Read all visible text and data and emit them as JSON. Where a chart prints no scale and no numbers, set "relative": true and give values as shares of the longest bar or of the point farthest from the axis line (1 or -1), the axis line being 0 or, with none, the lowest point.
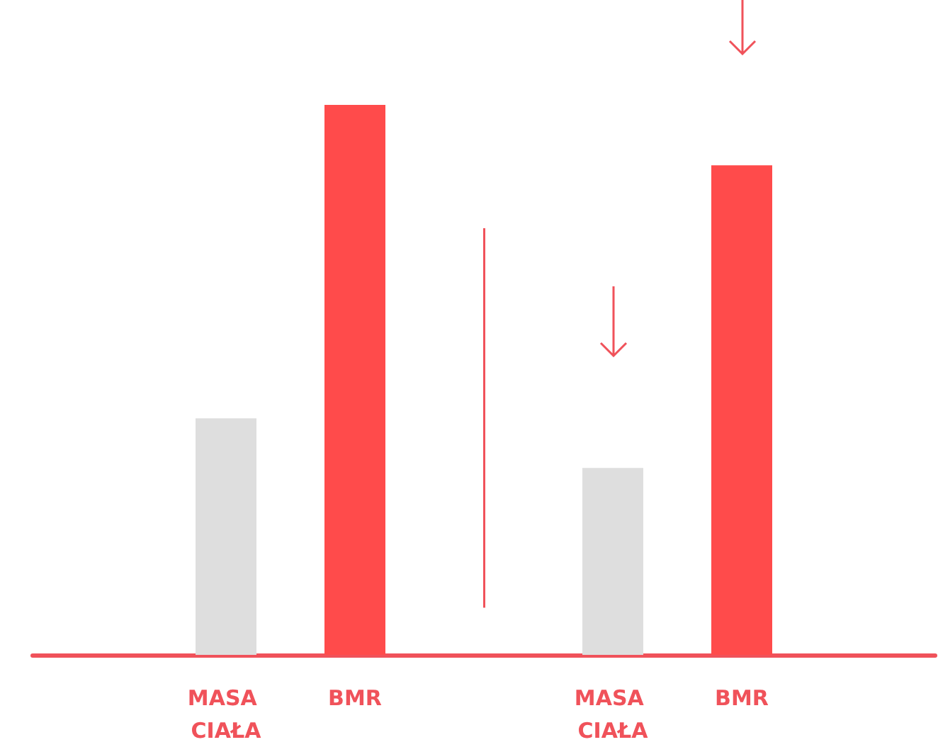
{
  "chart_data": {
    "type": "bar",
    "relative": true,
    "categories": [
      null,
      "MASA CIAŁA",
      "BMR",
      null,
      "MASA CIAŁA",
      "BMR",
      null
    ],
    "values": [
      null,
      0.43,
      1,
      null,
      0.34,
      0.89,
      null
    ],
    "colors": [
      "#dedede",
      "#dedede",
      "#ff4b4b",
      "#dedede",
      "#dedede",
      "#ff4b4b",
      "#dedede"
    ],
    "grid": false
  }
}
